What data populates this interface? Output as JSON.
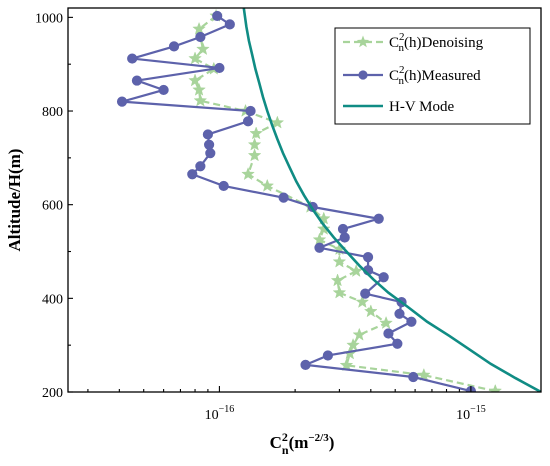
{
  "chart_data": {
    "type": "line",
    "xlabel": "C_n^2(m^-2/3)",
    "ylabel": "Altitude/H(m)",
    "x_scale": "log",
    "xlim": [
      2.5e-17,
      1.9e-15
    ],
    "ylim": [
      200,
      1020
    ],
    "x_ticks": [
      1e-16,
      1e-15
    ],
    "x_tick_labels": [
      "10^-16",
      "10^-15"
    ],
    "y_ticks": [
      200,
      400,
      600,
      800,
      1000
    ],
    "y_tick_labels": [
      "200",
      "400",
      "600",
      "800",
      "1000"
    ],
    "legend_position": "top-right",
    "series": [
      {
        "name": "C_n^2(h)Denoising",
        "color": "#a8d49b",
        "style": "dashed",
        "marker": "star",
        "points": [
          [
            9.7e-17,
            1003
          ],
          [
            8.3e-17,
            975
          ],
          [
            8.6e-17,
            932
          ],
          [
            8e-17,
            912
          ],
          [
            9.5e-17,
            890
          ],
          [
            8e-17,
            865
          ],
          [
            8.3e-17,
            845
          ],
          [
            8.4e-17,
            822
          ],
          [
            1.27e-16,
            800
          ],
          [
            1.7e-16,
            775
          ],
          [
            1.4e-16,
            752
          ],
          [
            1.38e-16,
            728
          ],
          [
            1.38e-16,
            705
          ],
          [
            1.3e-16,
            665
          ],
          [
            1.55e-16,
            640
          ],
          [
            2.3e-16,
            595
          ],
          [
            2.6e-16,
            570
          ],
          [
            2.6e-16,
            548
          ],
          [
            2.5e-16,
            525
          ],
          [
            3e-16,
            505
          ],
          [
            3e-16,
            478
          ],
          [
            3.5e-16,
            458
          ],
          [
            2.95e-16,
            438
          ],
          [
            3e-16,
            412
          ],
          [
            3.7e-16,
            392
          ],
          [
            4e-16,
            372
          ],
          [
            4.6e-16,
            347
          ],
          [
            3.6e-16,
            322
          ],
          [
            3.4e-16,
            300
          ],
          [
            3.3e-16,
            282
          ],
          [
            3.2e-16,
            257
          ],
          [
            6.5e-16,
            236
          ],
          [
            1.25e-15,
            202
          ]
        ]
      },
      {
        "name": "C_n^2(h)Measured",
        "color": "#5d62ab",
        "style": "solid",
        "marker": "circle",
        "points": [
          [
            9.8e-17,
            1003
          ],
          [
            1.1e-16,
            985
          ],
          [
            8.4e-17,
            958
          ],
          [
            6.6e-17,
            938
          ],
          [
            4.5e-17,
            912
          ],
          [
            1e-16,
            892
          ],
          [
            4.7e-17,
            865
          ],
          [
            6e-17,
            845
          ],
          [
            4.1e-17,
            820
          ],
          [
            1.33e-16,
            800
          ],
          [
            1.3e-16,
            778
          ],
          [
            9e-17,
            750
          ],
          [
            9.1e-17,
            728
          ],
          [
            9.2e-17,
            710
          ],
          [
            8.4e-17,
            682
          ],
          [
            7.8e-17,
            665
          ],
          [
            1.04e-16,
            640
          ],
          [
            1.8e-16,
            615
          ],
          [
            2.35e-16,
            595
          ],
          [
            4.3e-16,
            570
          ],
          [
            3.1e-16,
            548
          ],
          [
            3.15e-16,
            530
          ],
          [
            2.5e-16,
            508
          ],
          [
            3.9e-16,
            488
          ],
          [
            3.9e-16,
            460
          ],
          [
            4.5e-16,
            445
          ],
          [
            3.8e-16,
            410
          ],
          [
            5.3e-16,
            392
          ],
          [
            5.2e-16,
            367
          ],
          [
            5.8e-16,
            350
          ],
          [
            4.7e-16,
            325
          ],
          [
            5.1e-16,
            303
          ],
          [
            2.7e-16,
            278
          ],
          [
            2.2e-16,
            258
          ],
          [
            5.9e-16,
            232
          ],
          [
            1e-15,
            202
          ]
        ]
      },
      {
        "name": "H-V Mode",
        "color": "#108c84",
        "style": "solid",
        "marker": "none",
        "points": [
          [
            1.9e-15,
            200
          ],
          [
            1.5e-15,
            230
          ],
          [
            1.2e-15,
            260
          ],
          [
            9.8e-16,
            292
          ],
          [
            8.2e-16,
            320
          ],
          [
            6.7e-16,
            350
          ],
          [
            5.6e-16,
            382
          ],
          [
            4.7e-16,
            412
          ],
          [
            4.1e-16,
            440
          ],
          [
            3.6e-16,
            470
          ],
          [
            3.2e-16,
            500
          ],
          [
            2.85e-16,
            530
          ],
          [
            2.57e-16,
            560
          ],
          [
            2.35e-16,
            590
          ],
          [
            2.17e-16,
            620
          ],
          [
            2.02e-16,
            650
          ],
          [
            1.9e-16,
            680
          ],
          [
            1.79e-16,
            710
          ],
          [
            1.7e-16,
            740
          ],
          [
            1.62e-16,
            770
          ],
          [
            1.55e-16,
            800
          ],
          [
            1.49e-16,
            830
          ],
          [
            1.44e-16,
            860
          ],
          [
            1.39e-16,
            890
          ],
          [
            1.35e-16,
            920
          ],
          [
            1.31e-16,
            950
          ],
          [
            1.28e-16,
            980
          ],
          [
            1.25e-16,
            1020
          ]
        ]
      }
    ]
  }
}
